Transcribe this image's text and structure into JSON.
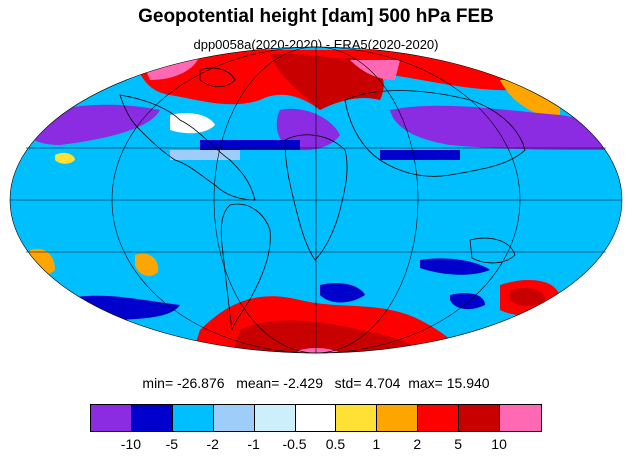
{
  "title": "Geopotential height [dam] 500 hPa FEB",
  "subtitle": "dpp0058a(2020-2020) - ERA5(2020-2020)",
  "stats": {
    "min_label": "min=",
    "min": "-26.876",
    "mean_label": "mean=",
    "mean": "-2.429",
    "std_label": "std=",
    "std": "4.704",
    "max_label": "max=",
    "max": "15.940"
  },
  "colorbar": {
    "colors": [
      "#8b2be2",
      "#0000cd",
      "#00bfff",
      "#9ecdfa",
      "#cdeffc",
      "#ffffff",
      "#ffe135",
      "#ffa500",
      "#ff0000",
      "#c80000",
      "#ff69b4"
    ],
    "labels": [
      "-10",
      "-5",
      "-2",
      "-1",
      "-0.5",
      "0.5",
      "1",
      "2",
      "5",
      "10"
    ]
  },
  "map": {
    "projection": "Mollweide",
    "background_color": "#00bfff"
  }
}
